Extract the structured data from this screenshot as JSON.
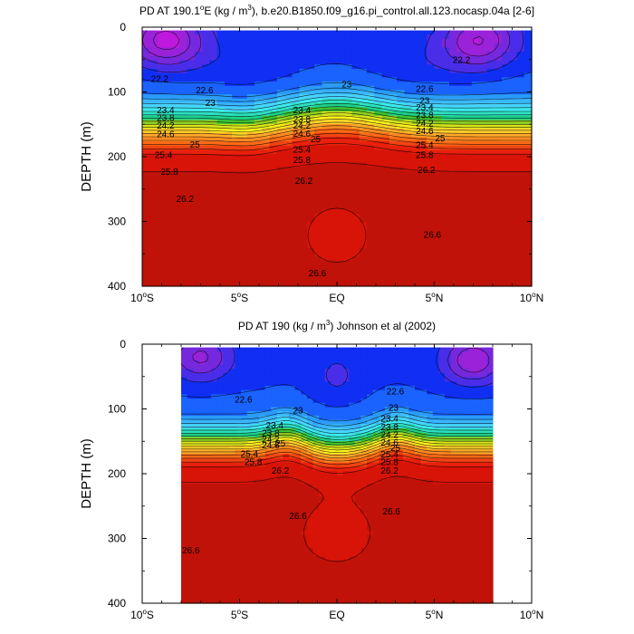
{
  "chart_data": [
    {
      "type": "contour",
      "title": "PD AT 190.1°E (kg / m³), b.e20.B1850.f09_g16.pi_control.all.123.nocasp.04a [2-6]",
      "title_parts": {
        "pre": "PD AT 190.1",
        "deg": "o",
        "mid": "E (kg / m",
        "sup": "3",
        "post": "), b.e20.B1850.f09_g16.pi_control.all.123.nocasp.04a [2-6]"
      },
      "xlabel": "",
      "ylabel": "DEPTH (m)",
      "xlim": [
        -10,
        10
      ],
      "ylim": [
        400,
        0
      ],
      "x_ticks": [
        {
          "value": -10,
          "num": "10",
          "deg": "o",
          "hemi": "S"
        },
        {
          "value": -5,
          "num": "5",
          "deg": "o",
          "hemi": "S"
        },
        {
          "value": 0,
          "num": "EQ",
          "deg": "",
          "hemi": ""
        },
        {
          "value": 5,
          "num": "5",
          "deg": "o",
          "hemi": "N"
        },
        {
          "value": 10,
          "num": "10",
          "deg": "o",
          "hemi": "N"
        }
      ],
      "y_ticks": [
        0,
        100,
        200,
        300,
        400
      ],
      "data_extent": {
        "lat": [
          -10,
          10
        ],
        "depth": [
          5,
          400
        ]
      },
      "levels": [
        20.2,
        20.6,
        21.0,
        21.4,
        21.8,
        22.2,
        22.6,
        23.0,
        23.2,
        23.4,
        23.6,
        23.8,
        24.0,
        24.2,
        24.4,
        24.6,
        24.8,
        25.0,
        25.2,
        25.4,
        25.6,
        25.8,
        26.0,
        26.2,
        26.6
      ],
      "line_labels": [
        {
          "text": "22.2",
          "lat": -9.1,
          "depth": 80
        },
        {
          "text": "22.6",
          "lat": -6.8,
          "depth": 97
        },
        {
          "text": "23",
          "lat": -6.5,
          "depth": 117
        },
        {
          "text": "23",
          "lat": 0.5,
          "depth": 88
        },
        {
          "text": "23.4",
          "lat": -8.8,
          "depth": 128
        },
        {
          "text": "23.8",
          "lat": -8.8,
          "depth": 140
        },
        {
          "text": "24.2",
          "lat": -8.8,
          "depth": 152
        },
        {
          "text": "24.6",
          "lat": -8.8,
          "depth": 165
        },
        {
          "text": "25",
          "lat": -7.3,
          "depth": 181
        },
        {
          "text": "25.4",
          "lat": -8.9,
          "depth": 197
        },
        {
          "text": "25.8",
          "lat": -8.6,
          "depth": 223
        },
        {
          "text": "26.2",
          "lat": -7.8,
          "depth": 265
        },
        {
          "text": "23.4",
          "lat": -1.8,
          "depth": 128
        },
        {
          "text": "23.8",
          "lat": -1.8,
          "depth": 142
        },
        {
          "text": "24.2",
          "lat": -1.8,
          "depth": 152
        },
        {
          "text": "24.6",
          "lat": -1.8,
          "depth": 164
        },
        {
          "text": "25",
          "lat": -1.1,
          "depth": 173
        },
        {
          "text": "25.4",
          "lat": -1.8,
          "depth": 189
        },
        {
          "text": "25.8",
          "lat": -1.8,
          "depth": 205
        },
        {
          "text": "26.2",
          "lat": -1.7,
          "depth": 237
        },
        {
          "text": "22.6",
          "lat": 4.5,
          "depth": 95
        },
        {
          "text": "23",
          "lat": 4.5,
          "depth": 113
        },
        {
          "text": "23.4",
          "lat": 4.5,
          "depth": 124
        },
        {
          "text": "23.8",
          "lat": 4.5,
          "depth": 136
        },
        {
          "text": "24.2",
          "lat": 4.5,
          "depth": 148
        },
        {
          "text": "24.6",
          "lat": 4.5,
          "depth": 160
        },
        {
          "text": "25",
          "lat": 5.3,
          "depth": 171
        },
        {
          "text": "25.4",
          "lat": 4.5,
          "depth": 182
        },
        {
          "text": "25.8",
          "lat": 4.5,
          "depth": 197
        },
        {
          "text": "26.2",
          "lat": 4.6,
          "depth": 220
        },
        {
          "text": "22.2",
          "lat": 6.4,
          "depth": 50
        },
        {
          "text": "26.6",
          "lat": 4.9,
          "depth": 320
        },
        {
          "text": "26.6",
          "lat": -1.0,
          "depth": 380
        }
      ]
    },
    {
      "type": "contour",
      "title": "PD AT 190 (kg / m³) Johnson et al (2002)",
      "title_parts": {
        "pre": "PD AT 190 (kg / m",
        "sup": "3",
        "post": ") Johnson et al (2002)"
      },
      "xlabel": "",
      "ylabel": "DEPTH (m)",
      "xlim": [
        -10,
        10
      ],
      "ylim": [
        400,
        0
      ],
      "x_ticks": [
        {
          "value": -10,
          "num": "10",
          "deg": "o",
          "hemi": "S"
        },
        {
          "value": -5,
          "num": "5",
          "deg": "o",
          "hemi": "S"
        },
        {
          "value": 0,
          "num": "EQ",
          "deg": "",
          "hemi": ""
        },
        {
          "value": 5,
          "num": "5",
          "deg": "o",
          "hemi": "N"
        },
        {
          "value": 10,
          "num": "10",
          "deg": "o",
          "hemi": "N"
        }
      ],
      "y_ticks": [
        0,
        100,
        200,
        300,
        400
      ],
      "data_extent": {
        "lat": [
          -8,
          8
        ],
        "depth": [
          5,
          400
        ]
      },
      "levels": [
        20.2,
        20.6,
        21.0,
        21.4,
        21.8,
        22.2,
        22.6,
        23.0,
        23.2,
        23.4,
        23.6,
        23.8,
        24.0,
        24.2,
        24.4,
        24.6,
        24.8,
        25.0,
        25.2,
        25.4,
        25.6,
        25.8,
        26.0,
        26.2,
        26.6
      ],
      "line_labels": [
        {
          "text": "22.6",
          "lat": -4.8,
          "depth": 85
        },
        {
          "text": "23",
          "lat": -2.0,
          "depth": 102
        },
        {
          "text": "23.4",
          "lat": -3.2,
          "depth": 125
        },
        {
          "text": "23.8",
          "lat": -3.4,
          "depth": 137
        },
        {
          "text": "24.2",
          "lat": -3.4,
          "depth": 147
        },
        {
          "text": "24.6",
          "lat": -3.4,
          "depth": 156
        },
        {
          "text": "25",
          "lat": -2.9,
          "depth": 153
        },
        {
          "text": "25.4",
          "lat": -4.5,
          "depth": 169
        },
        {
          "text": "25.8",
          "lat": -4.3,
          "depth": 182
        },
        {
          "text": "26.2",
          "lat": -2.9,
          "depth": 195
        },
        {
          "text": "22.6",
          "lat": 3.0,
          "depth": 73
        },
        {
          "text": "23",
          "lat": 2.9,
          "depth": 98
        },
        {
          "text": "23.4",
          "lat": 2.7,
          "depth": 115
        },
        {
          "text": "23.8",
          "lat": 2.7,
          "depth": 128
        },
        {
          "text": "24.2",
          "lat": 2.7,
          "depth": 140
        },
        {
          "text": "24.6",
          "lat": 2.7,
          "depth": 152
        },
        {
          "text": "25",
          "lat": 3.0,
          "depth": 160
        },
        {
          "text": "25.4",
          "lat": 2.7,
          "depth": 170
        },
        {
          "text": "25.8",
          "lat": 2.7,
          "depth": 182
        },
        {
          "text": "26.2",
          "lat": 2.7,
          "depth": 195
        },
        {
          "text": "26.6",
          "lat": -2.0,
          "depth": 265
        },
        {
          "text": "26.6",
          "lat": 2.8,
          "depth": 258
        },
        {
          "text": "26.6",
          "lat": -7.5,
          "depth": 318
        }
      ]
    }
  ],
  "colors": {
    "levels": [
      "#f50ff5",
      "#de12e6",
      "#be18dc",
      "#9a22d8",
      "#7628dc",
      "#4a2de8",
      "#102ff2",
      "#1a63ff",
      "#2a9bfa",
      "#39b6ff",
      "#46d4ff",
      "#3de9f0",
      "#2ee0c2",
      "#1ed08a",
      "#3ec232",
      "#8fce22",
      "#d7e41c",
      "#fff21e",
      "#ffd12a",
      "#ffaa2a",
      "#ff8b22",
      "#fb6a16",
      "#f04412",
      "#e8200d",
      "#d81408",
      "#c01208"
    ]
  }
}
